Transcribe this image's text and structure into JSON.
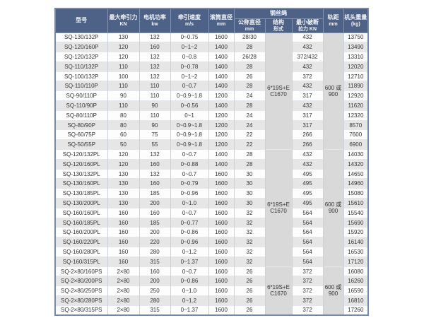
{
  "colors": {
    "header_bg": "#4e6287",
    "header_text": "#f2f5f9",
    "row_alt_bg": "#e6e6e6",
    "merged_cell_bg": "#d9d9d9",
    "outer_border": "#7589ac"
  },
  "table": {
    "rope_group_label": "钢丝绳",
    "columns": [
      {
        "label": "型号",
        "sub": ""
      },
      {
        "label": "最大牵引力",
        "sub": "KN"
      },
      {
        "label": "电机功率",
        "sub": "kw"
      },
      {
        "label": "牵引速度",
        "sub": "m/s"
      },
      {
        "label": "滚筒直径",
        "sub": "mm"
      },
      {
        "label": "公称直径",
        "sub": "mm"
      },
      {
        "label": "结构",
        "sub": "形式"
      },
      {
        "label": "最小破断",
        "sub": "拉力 KN"
      },
      {
        "label": "轨距",
        "sub": "mm"
      },
      {
        "label": "机头重量",
        "sub": "(kg)"
      }
    ],
    "groups": [
      {
        "rope_structure_line1": "6*19S+E",
        "rope_structure_line2": "C1670",
        "gauge_line1": "600 或",
        "gauge_line2": "900",
        "rows": [
          {
            "model": "SQ-130/132P",
            "kn": "130",
            "kw": "132",
            "speed": "0~0.75",
            "drum": "1600",
            "dia": "28/30",
            "breaking": "432",
            "weight": "13750"
          },
          {
            "model": "SQ-120/160P",
            "kn": "120",
            "kw": "160",
            "speed": "0~1~2",
            "drum": "1400",
            "dia": "28",
            "breaking": "432",
            "weight": "13490"
          },
          {
            "model": "SQ-120/132P",
            "kn": "120",
            "kw": "132",
            "speed": "0~0.8",
            "drum": "1400",
            "dia": "26/28",
            "breaking": "372/432",
            "weight": "13310"
          },
          {
            "model": "SQ-110/132P",
            "kn": "110",
            "kw": "132",
            "speed": "0~0.78",
            "drum": "1400",
            "dia": "28",
            "breaking": "432",
            "weight": "12020"
          },
          {
            "model": "SQ-100/132P",
            "kn": "100",
            "kw": "132",
            "speed": "0~1~2",
            "drum": "1400",
            "dia": "26",
            "breaking": "372",
            "weight": "12710"
          },
          {
            "model": "SQ-110/110P",
            "kn": "110",
            "kw": "110",
            "speed": "0~0.7",
            "drum": "1400",
            "dia": "28",
            "breaking": "432",
            "weight": "11890"
          },
          {
            "model": "SQ-90/110P",
            "kn": "90",
            "kw": "110",
            "speed": "0~0.9~1.8",
            "drum": "1200",
            "dia": "24",
            "breaking": "317",
            "weight": "12920"
          },
          {
            "model": "SQ-110/90P",
            "kn": "110",
            "kw": "90",
            "speed": "0~0.56",
            "drum": "1400",
            "dia": "28",
            "breaking": "432",
            "weight": "11620"
          },
          {
            "model": "SQ-80/110P",
            "kn": "80",
            "kw": "110",
            "speed": "0~1",
            "drum": "1200",
            "dia": "24",
            "breaking": "317",
            "weight": "12320"
          },
          {
            "model": "SQ-80/90P",
            "kn": "80",
            "kw": "90",
            "speed": "0~0.9~1.8",
            "drum": "1200",
            "dia": "24",
            "breaking": "317",
            "weight": "8570"
          },
          {
            "model": "SQ-60/75P",
            "kn": "60",
            "kw": "75",
            "speed": "0~0.9~1.8",
            "drum": "1200",
            "dia": "22",
            "breaking": "266",
            "weight": "7600"
          },
          {
            "model": "SQ-50/55P",
            "kn": "50",
            "kw": "55",
            "speed": "0~0.9~1.8",
            "drum": "1200",
            "dia": "22",
            "breaking": "266",
            "weight": "6900"
          }
        ]
      },
      {
        "rope_structure_line1": "6*19S+E",
        "rope_structure_line2": "C1670",
        "gauge_line1": "600 或",
        "gauge_line2": "900",
        "rows": [
          {
            "model": "SQ-120/132PL",
            "kn": "120",
            "kw": "132",
            "speed": "0~0.7",
            "drum": "1400",
            "dia": "28",
            "breaking": "432",
            "weight": "14030"
          },
          {
            "model": "SQ-120/160PL",
            "kn": "120",
            "kw": "160",
            "speed": "0~0.88",
            "drum": "1400",
            "dia": "28",
            "breaking": "432",
            "weight": "14320"
          },
          {
            "model": "SQ-130/132PL",
            "kn": "130",
            "kw": "132",
            "speed": "0~0.7",
            "drum": "1600",
            "dia": "30",
            "breaking": "495",
            "weight": "14650"
          },
          {
            "model": "SQ-130/160PL",
            "kn": "130",
            "kw": "160",
            "speed": "0~0.79",
            "drum": "1600",
            "dia": "30",
            "breaking": "495",
            "weight": "14960"
          },
          {
            "model": "SQ-130/185PL",
            "kn": "130",
            "kw": "185",
            "speed": "0~0.96",
            "drum": "1600",
            "dia": "30",
            "breaking": "495",
            "weight": "15080"
          },
          {
            "model": "SQ-130/200PL",
            "kn": "130",
            "kw": "200",
            "speed": "0~1.0",
            "drum": "1600",
            "dia": "30",
            "breaking": "495",
            "weight": "15610"
          },
          {
            "model": "SQ-160/160PL",
            "kn": "160",
            "kw": "160",
            "speed": "0~0.7",
            "drum": "1600",
            "dia": "32",
            "breaking": "564",
            "weight": "15540"
          },
          {
            "model": "SQ-160/185PL",
            "kn": "160",
            "kw": "185",
            "speed": "0~0.77",
            "drum": "1600",
            "dia": "32",
            "breaking": "564",
            "weight": "15690"
          },
          {
            "model": "SQ-160/200PL",
            "kn": "160",
            "kw": "200",
            "speed": "0~0.86",
            "drum": "1600",
            "dia": "32",
            "breaking": "564",
            "weight": "15920"
          },
          {
            "model": "SQ-160/220PL",
            "kn": "160",
            "kw": "220",
            "speed": "0~0.96",
            "drum": "1600",
            "dia": "32",
            "breaking": "564",
            "weight": "16140"
          },
          {
            "model": "SQ-160/280PL",
            "kn": "160",
            "kw": "280",
            "speed": "0~1.2",
            "drum": "1600",
            "dia": "32",
            "breaking": "564",
            "weight": "16530"
          },
          {
            "model": "SQ-160/315PL",
            "kn": "160",
            "kw": "315",
            "speed": "0~1.37",
            "drum": "1600",
            "dia": "32",
            "breaking": "564",
            "weight": "17120"
          }
        ]
      },
      {
        "rope_structure_line1": "6*19S+E",
        "rope_structure_line2": "C1670",
        "gauge_line1": "600 或",
        "gauge_line2": "900",
        "rows": [
          {
            "model": "SQ-2×80/160PS",
            "kn": "2×80",
            "kw": "160",
            "speed": "0~0.7",
            "drum": "1600",
            "dia": "26",
            "breaking": "372",
            "weight": "16080"
          },
          {
            "model": "SQ-2×80/200PS",
            "kn": "2×80",
            "kw": "200",
            "speed": "0~0.86",
            "drum": "1600",
            "dia": "26",
            "breaking": "372",
            "weight": "16260"
          },
          {
            "model": "SQ-2×80/250PS",
            "kn": "2×80",
            "kw": "250",
            "speed": "0~1.0",
            "drum": "1600",
            "dia": "26",
            "breaking": "372",
            "weight": "16590"
          },
          {
            "model": "SQ-2×80/280PS",
            "kn": "2×80",
            "kw": "280",
            "speed": "0~1.2",
            "drum": "1600",
            "dia": "26",
            "breaking": "372",
            "weight": "16810"
          },
          {
            "model": "SQ-2×80/315PS",
            "kn": "2×80",
            "kw": "315",
            "speed": "0~1.37",
            "drum": "1600",
            "dia": "26",
            "breaking": "372",
            "weight": "17260"
          }
        ]
      }
    ]
  }
}
